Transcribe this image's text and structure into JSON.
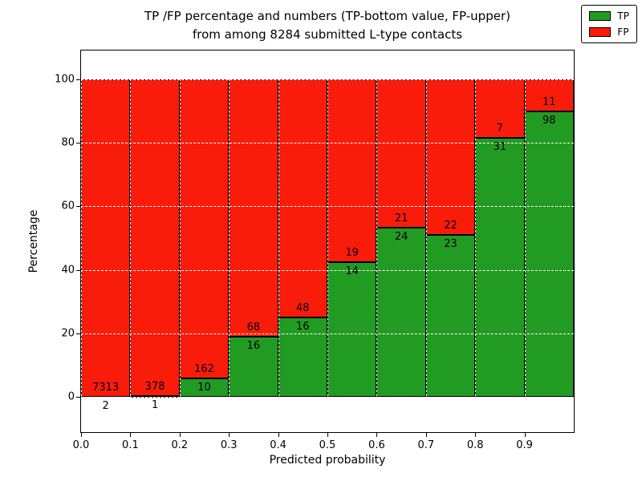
{
  "chart_data": {
    "type": "bar",
    "stacked": true,
    "title_lines": [
      "TP /FP percentage and numbers (TP-bottom value, FP-upper)",
      "from among 8284 submitted L-type contacts"
    ],
    "xlabel": "Predicted probability",
    "ylabel": "Percentage",
    "total_submitted": 8284,
    "xlim": [
      0.0,
      1.0
    ],
    "ylim": [
      -11,
      109
    ],
    "baseline": 0,
    "stack_total": 100,
    "grid": {
      "visible": true,
      "color": "#ffffff",
      "style": "dashed"
    },
    "legend_position": "upper right",
    "xticks": [
      {
        "v": 0.0,
        "label": "0.0"
      },
      {
        "v": 0.1,
        "label": "0.1"
      },
      {
        "v": 0.2,
        "label": "0.2"
      },
      {
        "v": 0.3,
        "label": "0.3"
      },
      {
        "v": 0.4,
        "label": "0.4"
      },
      {
        "v": 0.5,
        "label": "0.5"
      },
      {
        "v": 0.6,
        "label": "0.6"
      },
      {
        "v": 0.7,
        "label": "0.7"
      },
      {
        "v": 0.8,
        "label": "0.8"
      },
      {
        "v": 0.9,
        "label": "0.9"
      }
    ],
    "yticks": [
      {
        "v": 0,
        "label": "0"
      },
      {
        "v": 20,
        "label": "20"
      },
      {
        "v": 40,
        "label": "40"
      },
      {
        "v": 60,
        "label": "60"
      },
      {
        "v": 80,
        "label": "80"
      },
      {
        "v": 100,
        "label": "100"
      }
    ],
    "series": [
      {
        "name": "TP",
        "color": "#229b22"
      },
      {
        "name": "FP",
        "color": "#f91c0b"
      }
    ],
    "bins": [
      {
        "x0": 0.0,
        "x1": 0.1,
        "tp_count": 2,
        "fp_count": 7313,
        "tp_pct": 0.03,
        "fp_pct": 99.97
      },
      {
        "x0": 0.1,
        "x1": 0.2,
        "tp_count": 1,
        "fp_count": 378,
        "tp_pct": 0.26,
        "fp_pct": 99.74
      },
      {
        "x0": 0.2,
        "x1": 0.3,
        "tp_count": 10,
        "fp_count": 162,
        "tp_pct": 5.81,
        "fp_pct": 94.19
      },
      {
        "x0": 0.3,
        "x1": 0.4,
        "tp_count": 16,
        "fp_count": 68,
        "tp_pct": 19.05,
        "fp_pct": 80.95
      },
      {
        "x0": 0.4,
        "x1": 0.5,
        "tp_count": 16,
        "fp_count": 48,
        "tp_pct": 25.0,
        "fp_pct": 75.0
      },
      {
        "x0": 0.5,
        "x1": 0.6,
        "tp_count": 14,
        "fp_count": 19,
        "tp_pct": 42.42,
        "fp_pct": 57.58
      },
      {
        "x0": 0.6,
        "x1": 0.7,
        "tp_count": 24,
        "fp_count": 21,
        "tp_pct": 53.33,
        "fp_pct": 46.67
      },
      {
        "x0": 0.7,
        "x1": 0.8,
        "tp_count": 23,
        "fp_count": 22,
        "tp_pct": 51.11,
        "fp_pct": 48.89
      },
      {
        "x0": 0.8,
        "x1": 0.9,
        "tp_count": 31,
        "fp_count": 7,
        "tp_pct": 81.58,
        "fp_pct": 18.42
      },
      {
        "x0": 0.9,
        "x1": 1.0,
        "tp_count": 98,
        "fp_count": 11,
        "tp_pct": 89.91,
        "fp_pct": 10.09
      }
    ]
  }
}
